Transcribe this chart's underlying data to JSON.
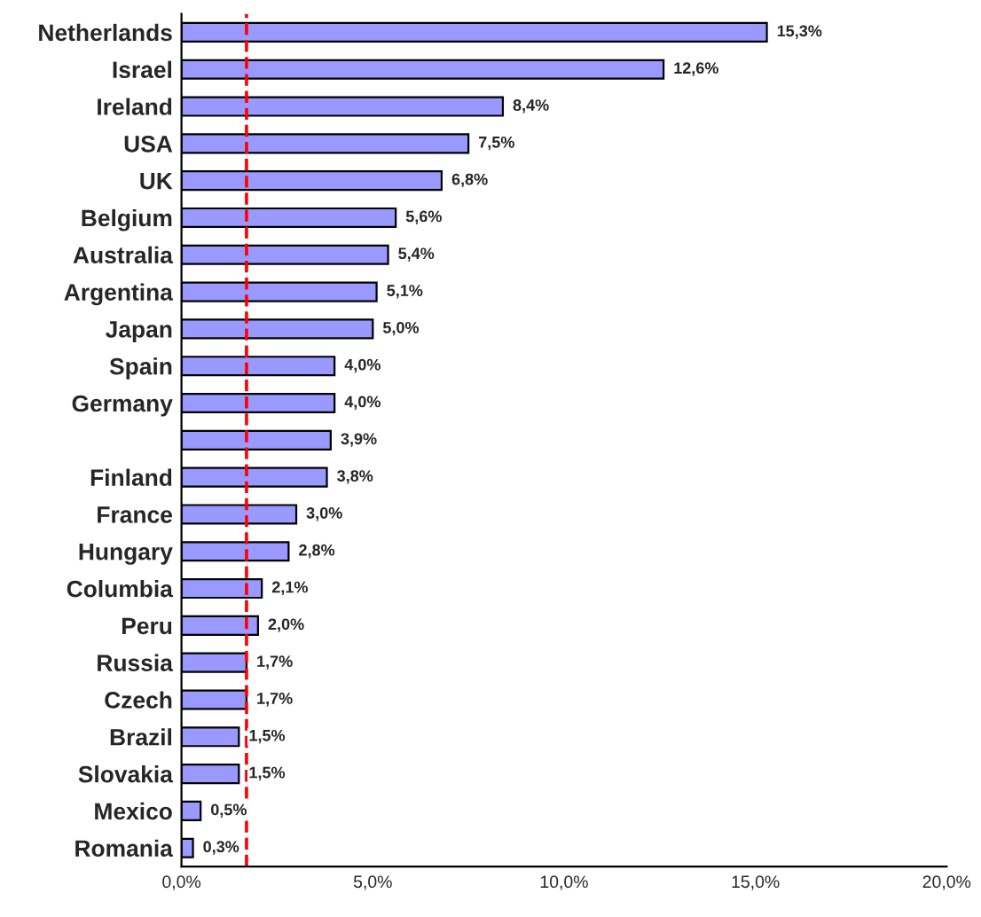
{
  "chart_data": {
    "type": "bar",
    "orientation": "horizontal",
    "categories": [
      "Netherlands",
      "Israel",
      "Ireland",
      "USA",
      "UK",
      "Belgium",
      "Australia",
      "Argentina",
      "Japan",
      "Spain",
      "Germany",
      null,
      "Finland",
      "France",
      "Hungary",
      "Columbia",
      "Peru",
      "Russia",
      "Czech",
      "Brazil",
      "Slovakia",
      "Mexico",
      "Romania"
    ],
    "values": [
      15.3,
      12.6,
      8.4,
      7.5,
      6.8,
      5.6,
      5.4,
      5.1,
      5.0,
      4.0,
      4.0,
      3.9,
      3.8,
      3.0,
      2.8,
      2.1,
      2.0,
      1.7,
      1.7,
      1.5,
      1.5,
      0.5,
      0.3
    ],
    "color": "#9999ff",
    "xlim": [
      0,
      20
    ],
    "xticks": [
      {
        "value": 0,
        "label": "0,0%"
      },
      {
        "value": 5,
        "label": "5,0%"
      },
      {
        "value": 10,
        "label": "10,0%"
      },
      {
        "value": 15,
        "label": "15,0%"
      },
      {
        "value": 20,
        "label": "20,0%"
      }
    ],
    "value_labels": [
      "15,3%",
      "12,6%",
      "8,4%",
      "7,5%",
      "6,8%",
      "5,6%",
      "5,4%",
      "5,1%",
      "5,0%",
      "4,0%",
      "4,0%",
      "3,9%",
      "3,8%",
      "3,0%",
      "2,8%",
      "2,1%",
      "2,0%",
      "1,7%",
      "1,7%",
      "1,5%",
      "1,5%",
      "0,5%",
      "0,3%"
    ],
    "ref_lines": [
      {
        "axis": "x",
        "value": 1.7,
        "color": "#ff0000",
        "line_style": "dashed"
      }
    ],
    "grid": false,
    "legend": false
  }
}
